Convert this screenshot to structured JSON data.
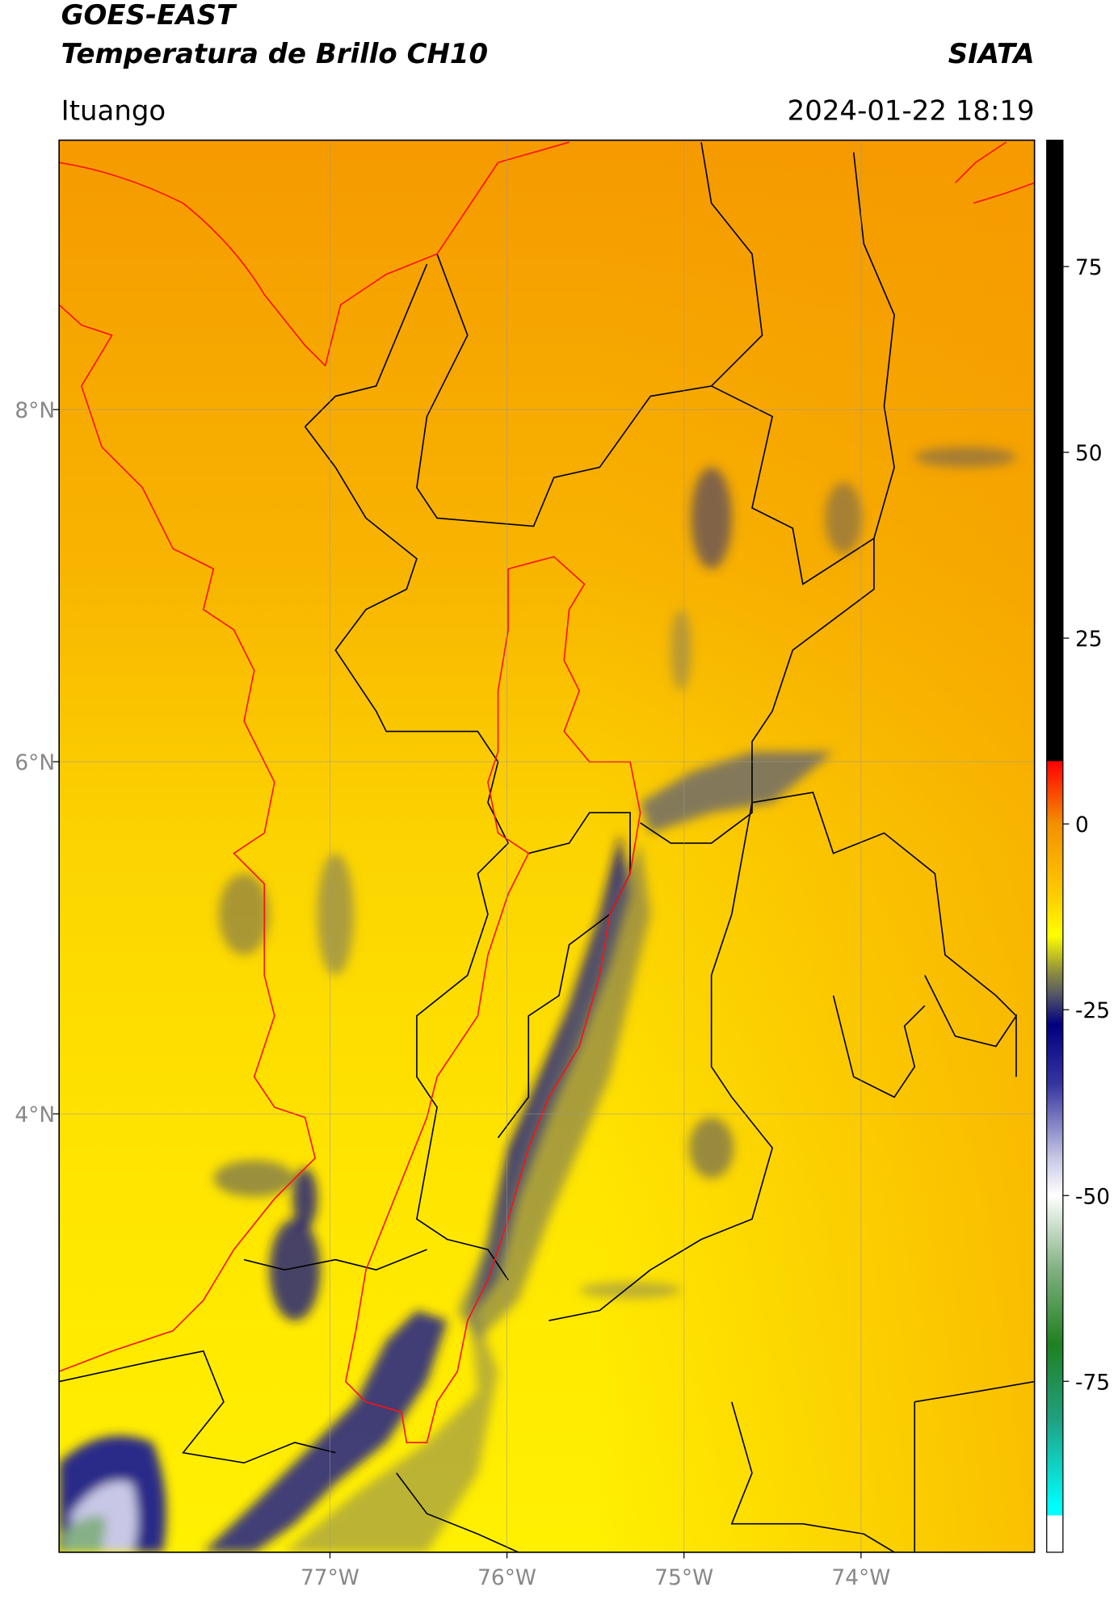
{
  "header": {
    "title": "GOES-EAST",
    "subtitle": "Temperatura de Brillo CH10",
    "source": "SIATA",
    "location": "Ituango",
    "timestamp": "2024-01-22 18:19"
  },
  "map": {
    "xlim": [
      -78.53,
      -73.02
    ],
    "ylim": [
      1.51,
      9.53
    ],
    "xticks": [
      {
        "value": -77,
        "label": "77°W"
      },
      {
        "value": -76,
        "label": "76°W"
      },
      {
        "value": -75,
        "label": "75°W"
      },
      {
        "value": -74,
        "label": "74°W"
      }
    ],
    "yticks": [
      {
        "value": 8,
        "label": "8°N"
      },
      {
        "value": 6,
        "label": "6°N"
      },
      {
        "value": 4,
        "label": "4°N"
      }
    ],
    "grid": true
  },
  "colorbar": {
    "lim": [
      -98,
      92
    ],
    "ticks": [
      75,
      50,
      25,
      0,
      -25,
      -50,
      -75
    ],
    "colormap": [
      {
        "value": 92,
        "color": "#000000"
      },
      {
        "value": 8.5,
        "color": "#000000"
      },
      {
        "value": 8.4,
        "color": "#ff0000"
      },
      {
        "value": 0,
        "color": "#f39000"
      },
      {
        "value": -10,
        "color": "#ffd000"
      },
      {
        "value": -15,
        "color": "#ffff00"
      },
      {
        "value": -20,
        "color": "#8c8c40"
      },
      {
        "value": -23,
        "color": "#555566"
      },
      {
        "value": -27,
        "color": "#000080"
      },
      {
        "value": -35,
        "color": "#3535a0"
      },
      {
        "value": -45,
        "color": "#c8c8e6"
      },
      {
        "value": -50,
        "color": "#ffffff"
      },
      {
        "value": -60,
        "color": "#80b080"
      },
      {
        "value": -70,
        "color": "#208020"
      },
      {
        "value": -80,
        "color": "#20a080"
      },
      {
        "value": -92,
        "color": "#00ffff"
      },
      {
        "value": -93,
        "color": "#00ffff"
      },
      {
        "value": -93.1,
        "color": "#ffffff"
      },
      {
        "value": -98,
        "color": "#ffffff"
      }
    ]
  }
}
